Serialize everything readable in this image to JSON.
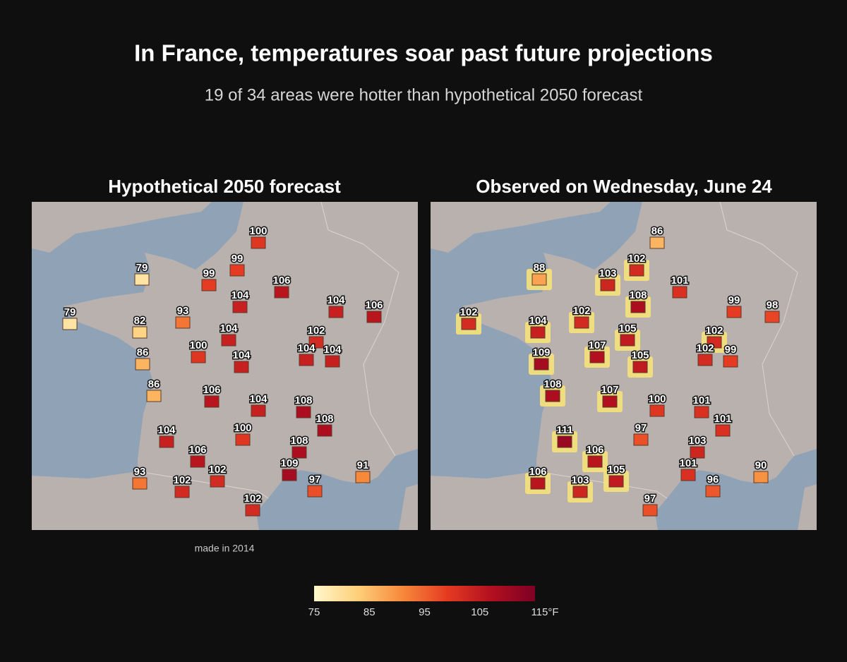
{
  "title": "In France, temperatures soar past future projections",
  "subtitle": "19 of 34 areas were hotter than hypothetical 2050 forecast",
  "maps": [
    {
      "title": "Hypothetical 2050 forecast",
      "note": "made in 2014",
      "values": [
        100,
        99,
        79,
        99,
        106,
        104,
        104,
        106,
        79,
        93,
        82,
        104,
        102,
        100,
        104,
        104,
        86,
        104,
        86,
        106,
        104,
        108,
        108,
        104,
        100,
        108,
        106,
        109,
        91,
        102,
        93,
        102,
        97,
        102
      ]
    },
    {
      "title": "Observed on Wednesday, June 24",
      "values": [
        86,
        102,
        88,
        103,
        101,
        108,
        99,
        98,
        102,
        102,
        104,
        105,
        102,
        107,
        102,
        99,
        109,
        105,
        108,
        107,
        100,
        101,
        101,
        111,
        97,
        103,
        106,
        101,
        90,
        105,
        106,
        103,
        96,
        97
      ],
      "highlighted": [
        false,
        true,
        true,
        true,
        false,
        true,
        false,
        false,
        true,
        true,
        true,
        true,
        true,
        true,
        false,
        false,
        true,
        true,
        true,
        true,
        false,
        false,
        false,
        true,
        false,
        false,
        true,
        false,
        false,
        true,
        true,
        true,
        false,
        false
      ]
    }
  ],
  "legend": {
    "lim": [
      75,
      115
    ],
    "ticks": [
      75,
      85,
      95,
      105,
      {
        "value": 115,
        "label": "115°F"
      }
    ],
    "colors": [
      "#fff7cc",
      "#fdcf78",
      "#f7893b",
      "#e53b22",
      "#b3101f",
      "#7d0025"
    ]
  }
}
